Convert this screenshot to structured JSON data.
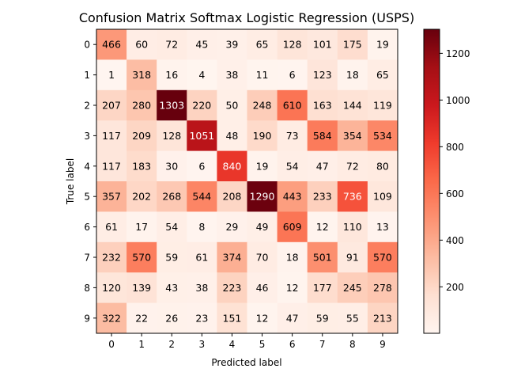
{
  "chart_data": {
    "type": "heatmap",
    "title": "Confusion Matrix Softmax Logistic Regression (USPS)",
    "xlabel": "Predicted label",
    "ylabel": "True label",
    "x_categories": [
      "0",
      "1",
      "2",
      "3",
      "4",
      "5",
      "6",
      "7",
      "8",
      "9"
    ],
    "y_categories": [
      "0",
      "1",
      "2",
      "3",
      "4",
      "5",
      "6",
      "7",
      "8",
      "9"
    ],
    "values": [
      [
        466,
        60,
        72,
        45,
        39,
        65,
        128,
        101,
        175,
        19
      ],
      [
        1,
        318,
        16,
        4,
        38,
        11,
        6,
        123,
        18,
        65
      ],
      [
        207,
        280,
        1303,
        220,
        50,
        248,
        610,
        163,
        144,
        119
      ],
      [
        117,
        209,
        128,
        1051,
        48,
        190,
        73,
        584,
        354,
        534
      ],
      [
        117,
        183,
        30,
        6,
        840,
        19,
        54,
        47,
        72,
        80
      ],
      [
        357,
        202,
        268,
        544,
        208,
        1290,
        443,
        233,
        736,
        109
      ],
      [
        61,
        17,
        54,
        8,
        29,
        49,
        609,
        12,
        110,
        13
      ],
      [
        232,
        570,
        59,
        61,
        374,
        70,
        18,
        501,
        91,
        570
      ],
      [
        120,
        139,
        43,
        38,
        223,
        46,
        12,
        177,
        245,
        278
      ],
      [
        322,
        22,
        26,
        23,
        151,
        12,
        47,
        59,
        55,
        213
      ]
    ],
    "colormap": "Reds",
    "colorbar": {
      "range": [
        1,
        1303
      ],
      "ticks": [
        200,
        400,
        600,
        800,
        1000,
        1200
      ]
    },
    "text_color_threshold": 651.5,
    "grid": false
  }
}
